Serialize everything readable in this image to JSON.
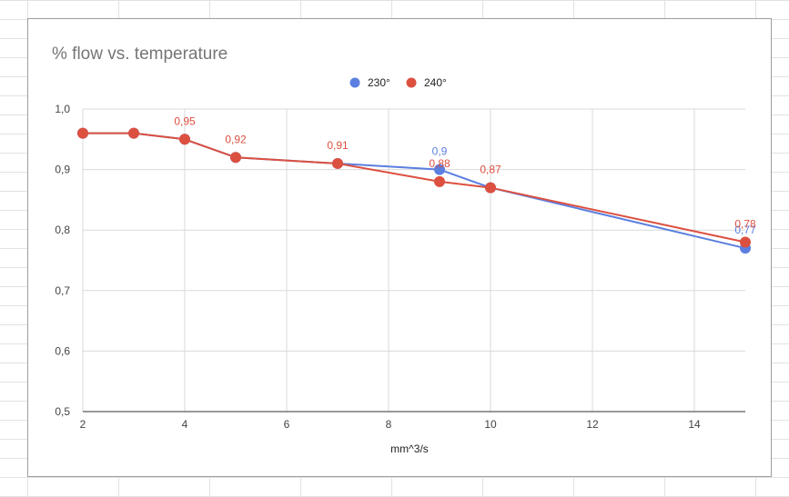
{
  "chart_data": {
    "type": "line",
    "title": "% flow vs. temperature",
    "xlabel": "mm^3/s",
    "ylabel": "",
    "xlim": [
      2,
      15
    ],
    "ylim": [
      0.5,
      1.0
    ],
    "xticks": [
      2,
      4,
      6,
      8,
      10,
      12,
      14
    ],
    "yticks": [
      0.5,
      0.6,
      0.7,
      0.8,
      0.9,
      1.0
    ],
    "decimal_separator": ",",
    "grid": true,
    "legend_position": "top",
    "series": [
      {
        "name": "230°",
        "color": "#5b7fe0",
        "x": [
          2,
          3,
          4,
          5,
          7,
          9,
          10,
          15
        ],
        "y": [
          0.96,
          0.96,
          0.95,
          0.92,
          0.91,
          0.9,
          0.87,
          0.77
        ],
        "labels": [
          "",
          "",
          "",
          "",
          "",
          "0,9",
          "",
          "0,77"
        ]
      },
      {
        "name": "240°",
        "color": "#dc5040",
        "x": [
          2,
          3,
          4,
          5,
          7,
          9,
          10,
          15
        ],
        "y": [
          0.96,
          0.96,
          0.95,
          0.92,
          0.91,
          0.88,
          0.87,
          0.78
        ],
        "labels": [
          "",
          "",
          "0,95",
          "0,92",
          "0,91",
          "0,88",
          "0,87",
          "0,78"
        ]
      }
    ]
  }
}
